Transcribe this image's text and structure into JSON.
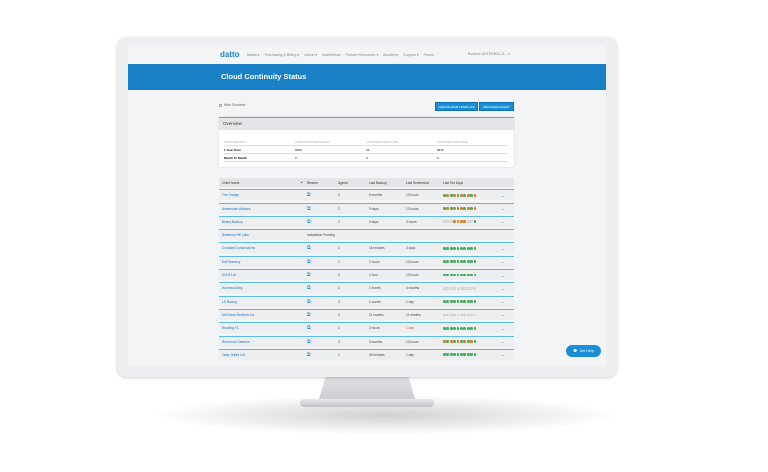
{
  "nav": {
    "logo": "datto",
    "items": [
      "Status ▾",
      "Purchasing & Billing ▾",
      "Admin ▾",
      "MarketNow",
      "Partner Resources ▾",
      "Academy",
      "Support ▾",
      "Forum"
    ],
    "user": "Bsntech (INTERNAL D... ▾"
  },
  "page": {
    "title": "Cloud Continuity Status",
    "hide_overview": "Hide Overview",
    "create_rmm": "CREATE RMM TEMPLATE",
    "register_agent": "REGISTER AGENT"
  },
  "overview": {
    "title": "Overview",
    "headers": [
      "SUBSCRIPTION",
      "LICENSES PURCHASED",
      "LICENSES DEPLOYED",
      "LICENSES AVAILABLE"
    ],
    "rows": [
      [
        "1 Year Term",
        "9999",
        "22",
        "9976"
      ],
      [
        "Month To Month",
        "0",
        "0",
        "0"
      ]
    ]
  },
  "table": {
    "headers": [
      "Client Name",
      "Restore",
      "Agents",
      "Last Backup",
      "Last Screenshot",
      "Last Ten Days"
    ],
    "sort_icon": "▲",
    "rows": [
      {
        "name": "The Orange",
        "agents": "2",
        "backup": "6 months",
        "screenshot": "13 hours",
        "days": "gogogogogo"
      },
      {
        "name": "Amsterdam Artisans",
        "agents": "2",
        "backup": "9 days",
        "screenshot": "13 hours",
        "days": "gogogogogo"
      },
      {
        "name": "Binary Backup",
        "agents": "2",
        "backup": "3 days",
        "screenshot": "3 hours",
        "days": "eeeooooeeg"
      },
      {
        "name": "Blueberry Hill Labs",
        "status": "Installation Pending"
      },
      {
        "name": "Constant Constructions",
        "agents": "1",
        "backup": "18 minutes",
        "screenshot": "3 days",
        "days": "gggggggggg"
      },
      {
        "name": "Duff Brewery",
        "agents": "1",
        "backup": "2 hours",
        "screenshot": "13 hours",
        "days": "gggggggggg"
      },
      {
        "name": "DVLB Ltd",
        "agents": "2",
        "backup": "1 hour",
        "screenshot": "13 hours",
        "days": "gggggggggg"
      },
      {
        "name": "Hummus&Veg",
        "agents": "1",
        "backup": "1 month",
        "screenshot": "4 months",
        "days": "eeeeeeeeee"
      },
      {
        "name": "LS Racing",
        "agents": "3",
        "backup": "1 month",
        "screenshot": "1 day",
        "days": "gggggggggg"
      },
      {
        "name": "McGowan Builders Ltd",
        "agents": "3",
        "backup": "11 months",
        "screenshot": "11 months",
        "days": "eeeeeeeeee"
      },
      {
        "name": "Reading FC",
        "agents": "1",
        "backup": "2 hours",
        "screenshot": "1 day",
        "screenshot_alert": true,
        "days": "gggggggggg"
      },
      {
        "name": "Richmond Gardens",
        "agents": "3",
        "backup": "3 months",
        "screenshot": "13 hours",
        "days": "ogogogogog"
      },
      {
        "name": "Tasty Jellies Ltd",
        "agents": "1",
        "backup": "43 minutes",
        "screenshot": "1 day",
        "days": "gggggggggg"
      }
    ]
  },
  "help": {
    "label": "Get Help"
  },
  "colors": {
    "brand": "#1a80c6",
    "green": "#4cc46a",
    "orange": "#f08a24",
    "alert": "#e53935"
  }
}
